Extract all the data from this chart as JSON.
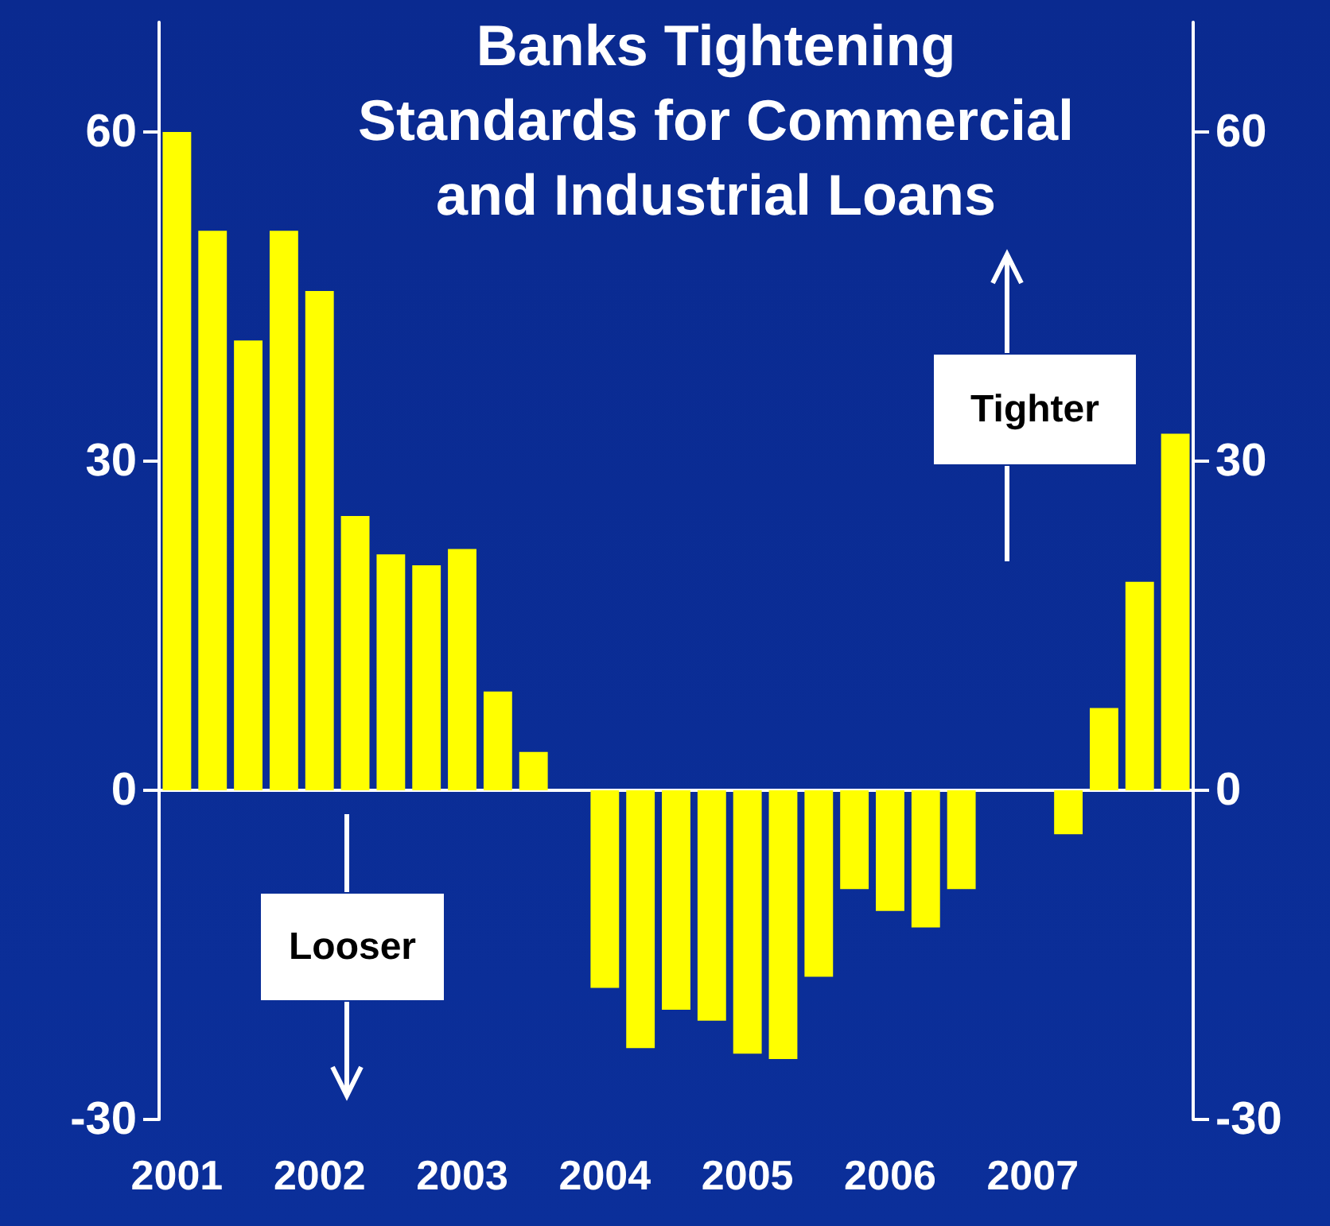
{
  "chart_data": {
    "type": "bar",
    "title": "Banks Tightening\nStandards for Commercial\nand Industrial Loans",
    "categories": [
      "2001",
      null,
      null,
      null,
      "2002",
      null,
      null,
      null,
      "2003",
      null,
      null,
      null,
      "2004",
      null,
      null,
      null,
      "2005",
      null,
      null,
      null,
      "2006",
      null,
      null,
      null,
      "2007",
      null,
      null,
      null,
      null
    ],
    "values": [
      60,
      51,
      41,
      51,
      45.5,
      25,
      21.5,
      20.5,
      22,
      9,
      3.5,
      0,
      -18,
      -23.5,
      -20,
      -21,
      -24,
      -24.5,
      -17,
      -9,
      -11,
      -12.5,
      -9,
      0,
      0,
      -4,
      7.5,
      19,
      32.5
    ],
    "color": "#ffff00",
    "ylim": [
      -30,
      70
    ],
    "yticks": [
      -30,
      0,
      30,
      60
    ],
    "y2lim": [
      -30,
      70
    ],
    "y2ticks": [
      -30,
      0,
      30,
      60
    ],
    "annotations": [
      "Tighter",
      "Looser"
    ]
  }
}
